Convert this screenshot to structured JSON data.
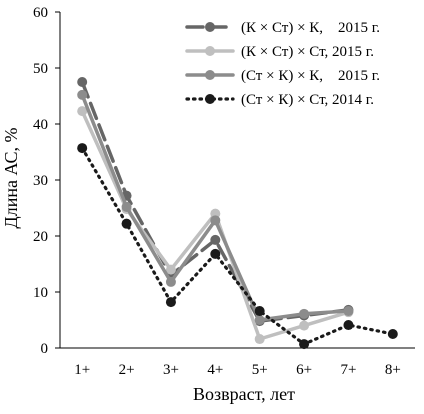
{
  "chart_data": {
    "type": "line",
    "title": "",
    "xlabel": "Возвраст, лет",
    "ylabel": "Длина АС, %",
    "categories": [
      "1+",
      "2+",
      "3+",
      "4+",
      "5+",
      "6+",
      "7+",
      "8+"
    ],
    "ylim": [
      0,
      60
    ],
    "yticks": [
      0,
      10,
      20,
      30,
      40,
      50,
      60
    ],
    "grid": false,
    "legend_position": "top-right",
    "series": [
      {
        "name": "(К × Ст) × К,   2015 г.",
        "values": [
          47.5,
          27.2,
          13.0,
          19.3,
          4.8,
          5.8,
          6.8,
          null
        ],
        "color": "#666666",
        "line_style": "long-dash",
        "legend_parts": [
          "(К × Ст) × К,",
          "2015 г."
        ]
      },
      {
        "name": "(К × Ст) × Ст, 2015 г.",
        "values": [
          42.3,
          24.8,
          14.0,
          24.0,
          1.6,
          4.0,
          6.4,
          null
        ],
        "color": "#bfbfbf",
        "line_style": "solid",
        "legend_parts": [
          "(К × Ст) × Ст, 2015 г."
        ]
      },
      {
        "name": "(Ст × К) × К,   2015 г.",
        "values": [
          45.2,
          25.2,
          11.8,
          22.8,
          5.0,
          6.1,
          6.6,
          null
        ],
        "color": "#8c8c8c",
        "line_style": "solid",
        "legend_parts": [
          "(Ст × К) × К,",
          "2015 г."
        ]
      },
      {
        "name": "(Ст × К) × Ст, 2014 г.",
        "values": [
          35.7,
          22.2,
          8.2,
          16.8,
          6.6,
          0.7,
          4.1,
          2.5
        ],
        "color": "#1a1a1a",
        "line_style": "dotted",
        "legend_parts": [
          "(Ст × К) × Ст, 2014 г."
        ]
      }
    ]
  }
}
